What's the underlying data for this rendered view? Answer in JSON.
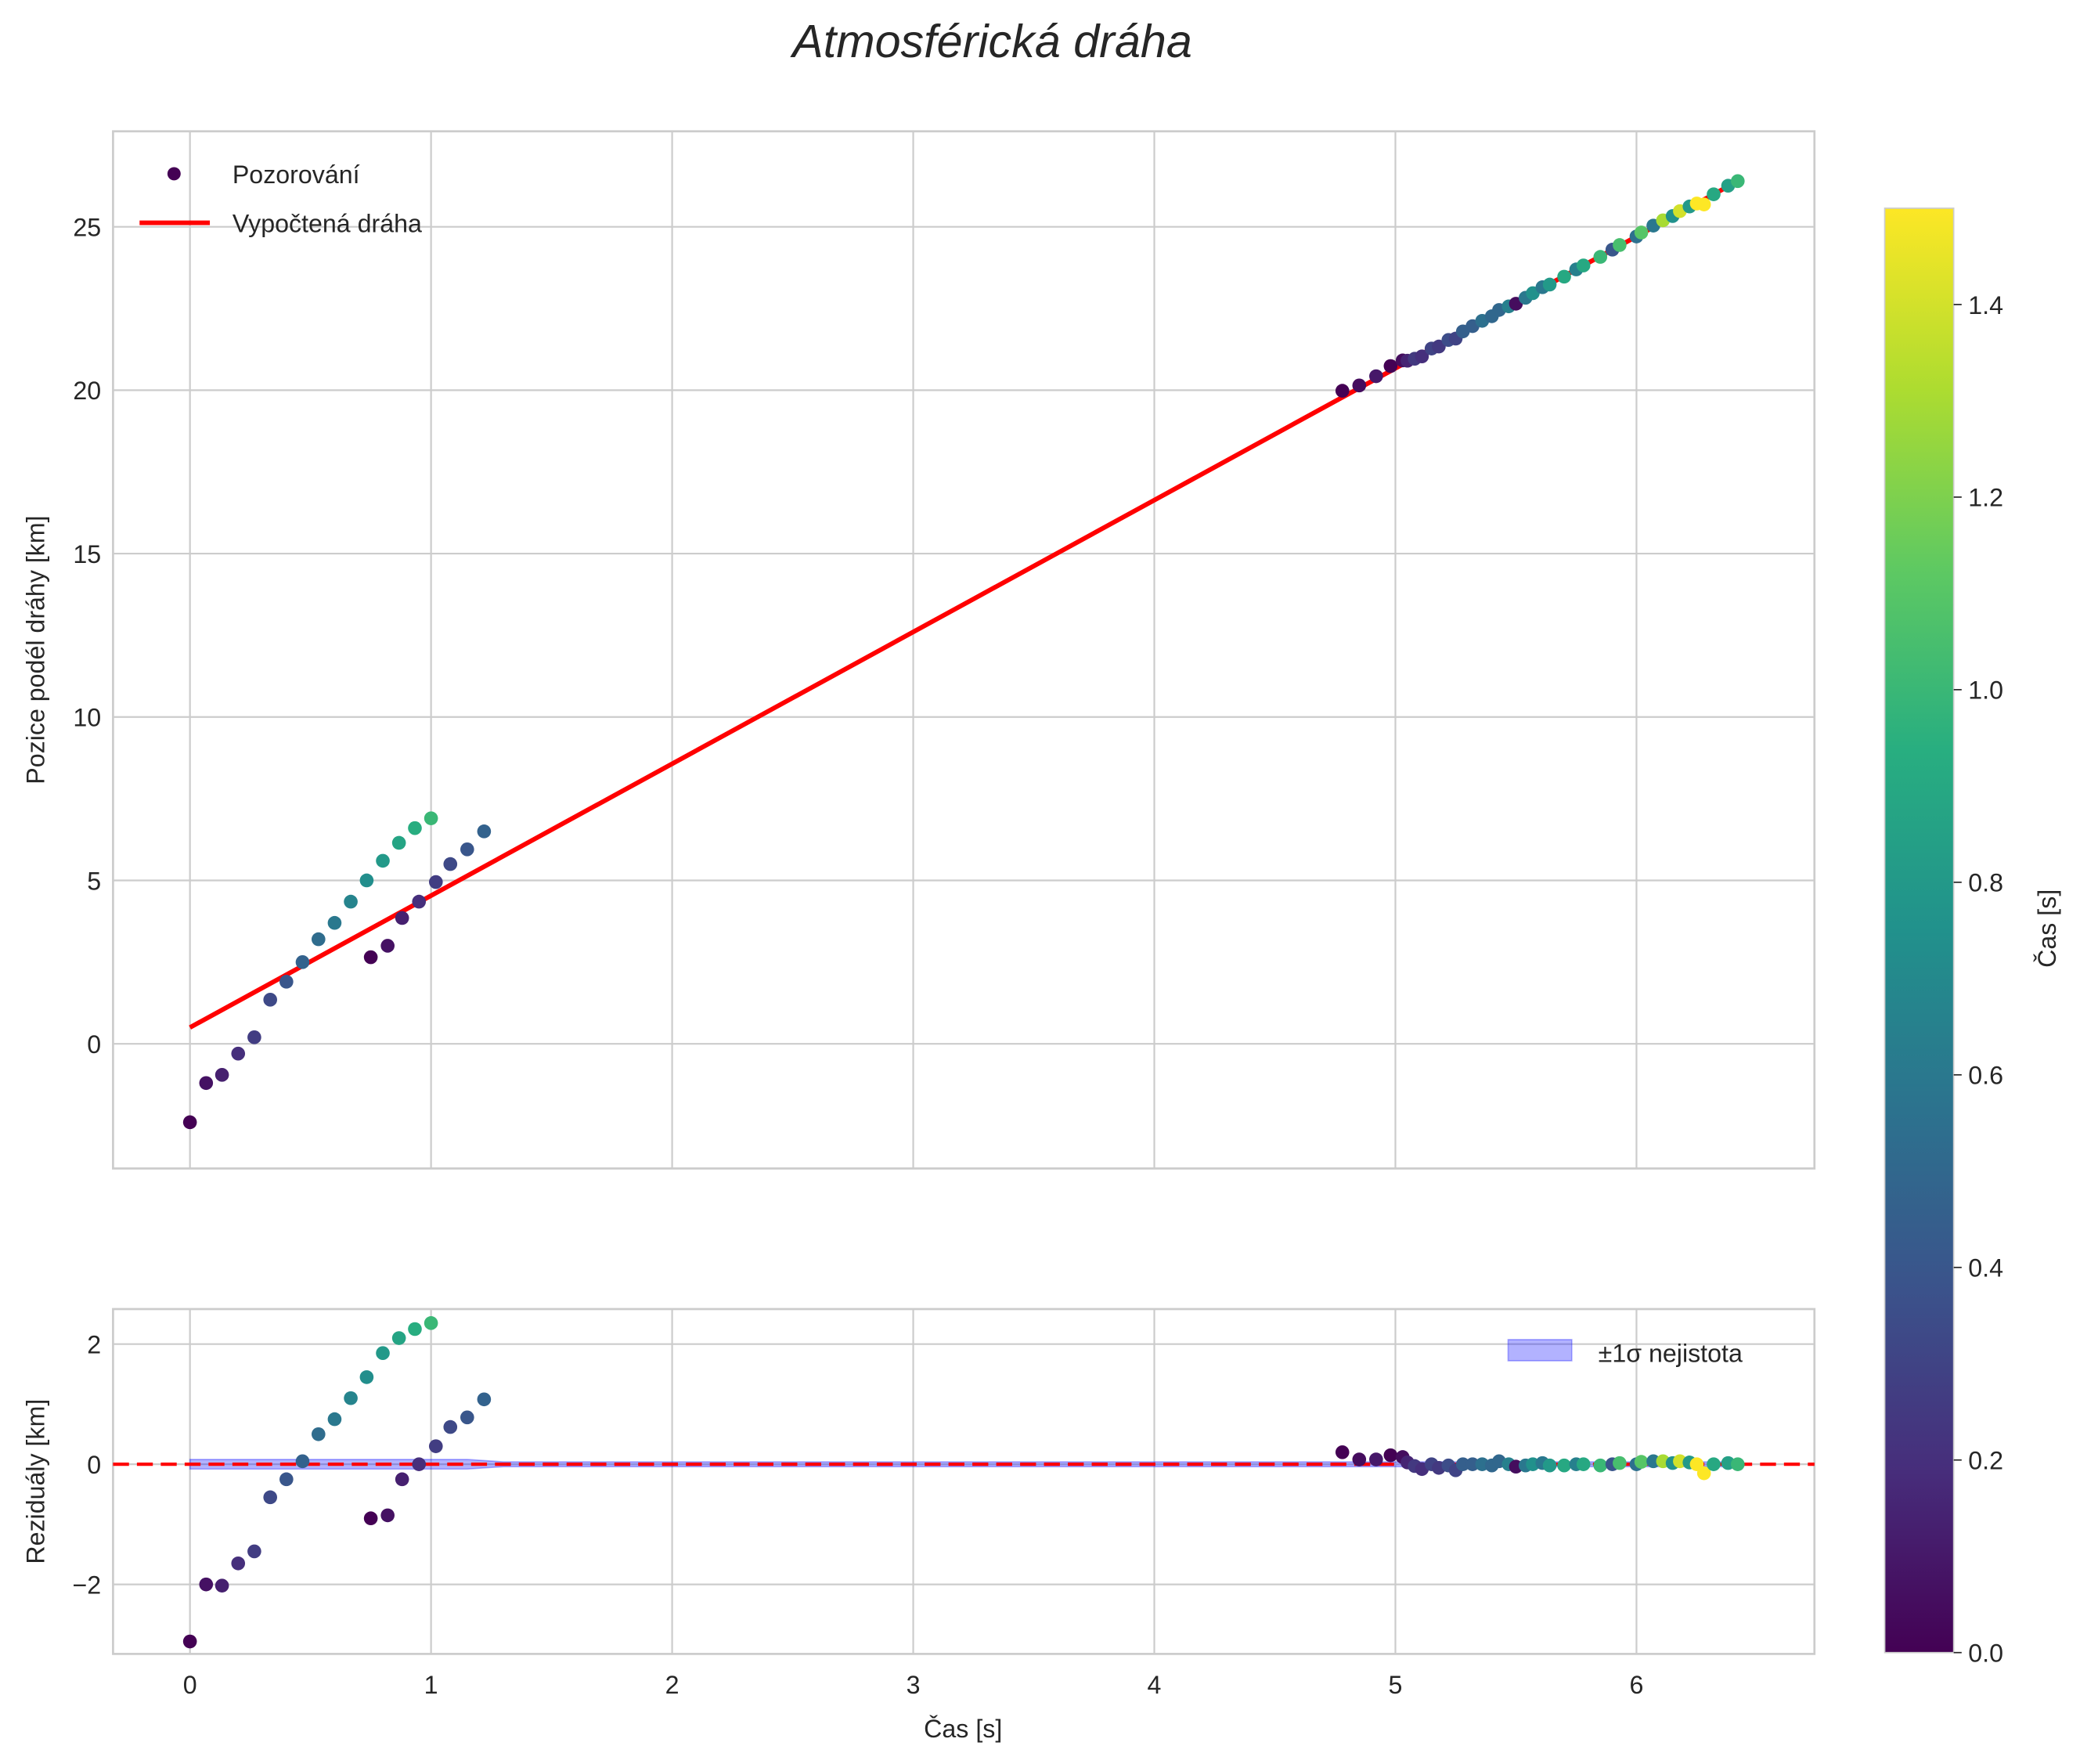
{
  "chart_data": [
    {
      "type": "scatter",
      "title": "Atmosférická dráha",
      "xlabel": "Čas [s]",
      "ylabel": "Pozice podél dráhy [km]",
      "xlim": [
        -0.32,
        6.73
      ],
      "ylim": [
        -3.8,
        27.9
      ],
      "xticks": [
        "0",
        "1",
        "2",
        "3",
        "4",
        "5",
        "6"
      ],
      "yticks": [
        "0",
        "5",
        "10",
        "15",
        "20",
        "25"
      ],
      "grid": true,
      "legend": {
        "placement": "top-left",
        "entries": [
          "Pozorování",
          "Vypočtená dráha"
        ]
      },
      "fit_line": {
        "name": "Vypočtená dráha",
        "intercept": 0.5,
        "slope": 4.034,
        "t_range": [
          0,
          6.42
        ],
        "color": "#ff0000"
      },
      "early_points": [
        {
          "t": 0.0,
          "pos": -2.4,
          "res": -2.95,
          "c": 0.0
        },
        {
          "t": 0.067,
          "pos": -1.2,
          "res": -2.0,
          "c": 0.07
        },
        {
          "t": 0.133,
          "pos": -0.95,
          "res": -2.02,
          "c": 0.13
        },
        {
          "t": 0.2,
          "pos": -0.3,
          "res": -1.65,
          "c": 0.2
        },
        {
          "t": 0.267,
          "pos": 0.2,
          "res": -1.45,
          "c": 0.27
        },
        {
          "t": 0.333,
          "pos": 1.35,
          "res": -0.55,
          "c": 0.33
        },
        {
          "t": 0.4,
          "pos": 1.9,
          "res": -0.25,
          "c": 0.4
        },
        {
          "t": 0.467,
          "pos": 2.5,
          "res": 0.05,
          "c": 0.47
        },
        {
          "t": 0.533,
          "pos": 3.2,
          "res": 0.5,
          "c": 0.53
        },
        {
          "t": 0.6,
          "pos": 3.7,
          "res": 0.75,
          "c": 0.6
        },
        {
          "t": 0.667,
          "pos": 4.35,
          "res": 1.1,
          "c": 0.67
        },
        {
          "t": 0.733,
          "pos": 5.0,
          "res": 1.45,
          "c": 0.73
        },
        {
          "t": 0.8,
          "pos": 5.6,
          "res": 1.85,
          "c": 0.8
        },
        {
          "t": 0.867,
          "pos": 6.15,
          "res": 2.1,
          "c": 0.87
        },
        {
          "t": 0.933,
          "pos": 6.6,
          "res": 2.25,
          "c": 0.93
        },
        {
          "t": 1.0,
          "pos": 6.9,
          "res": 2.35,
          "c": 1.0
        },
        {
          "t": 0.75,
          "pos": 2.65,
          "res": -0.9,
          "c": 0.0
        },
        {
          "t": 0.82,
          "pos": 3.0,
          "res": -0.85,
          "c": 0.07
        },
        {
          "t": 0.88,
          "pos": 3.85,
          "res": -0.25,
          "c": 0.13
        },
        {
          "t": 0.95,
          "pos": 4.35,
          "res": 0.0,
          "c": 0.2
        },
        {
          "t": 1.02,
          "pos": 4.95,
          "res": 0.3,
          "c": 0.27
        },
        {
          "t": 1.08,
          "pos": 5.5,
          "res": 0.62,
          "c": 0.33
        },
        {
          "t": 1.15,
          "pos": 5.95,
          "res": 0.78,
          "c": 0.4
        },
        {
          "t": 1.22,
          "pos": 6.5,
          "res": 1.08,
          "c": 0.47
        }
      ],
      "late_points_t_res_c": [
        [
          4.78,
          0.2,
          0.0
        ],
        [
          4.85,
          0.08,
          0.05
        ],
        [
          4.92,
          0.08,
          0.1
        ],
        [
          4.98,
          0.15,
          0.0
        ],
        [
          5.03,
          0.12,
          0.05
        ],
        [
          5.05,
          0.03,
          0.15
        ],
        [
          5.08,
          -0.03,
          0.25
        ],
        [
          5.11,
          -0.08,
          0.2
        ],
        [
          5.15,
          0.0,
          0.3
        ],
        [
          5.18,
          -0.06,
          0.25
        ],
        [
          5.22,
          -0.02,
          0.35
        ],
        [
          5.25,
          -0.1,
          0.3
        ],
        [
          5.28,
          0.0,
          0.45
        ],
        [
          5.32,
          0.0,
          0.45
        ],
        [
          5.36,
          0.0,
          0.55
        ],
        [
          5.4,
          -0.02,
          0.5
        ],
        [
          5.43,
          0.05,
          0.5
        ],
        [
          5.47,
          0.0,
          0.65
        ],
        [
          5.5,
          -0.04,
          0.05
        ],
        [
          5.54,
          -0.02,
          0.6
        ],
        [
          5.57,
          0.0,
          0.75
        ],
        [
          5.61,
          0.02,
          0.6
        ],
        [
          5.64,
          -0.02,
          0.8
        ],
        [
          5.7,
          -0.02,
          0.9
        ],
        [
          5.75,
          0.0,
          0.65
        ],
        [
          5.78,
          0.0,
          0.9
        ],
        [
          5.85,
          -0.02,
          1.0
        ],
        [
          5.9,
          0.0,
          0.4
        ],
        [
          5.93,
          0.02,
          1.05
        ],
        [
          6.0,
          0.0,
          0.55
        ],
        [
          6.02,
          0.04,
          1.1
        ],
        [
          6.07,
          0.05,
          0.6
        ],
        [
          6.11,
          0.05,
          1.3
        ],
        [
          6.15,
          0.02,
          0.75
        ],
        [
          6.18,
          0.05,
          1.4
        ],
        [
          6.22,
          0.03,
          0.8
        ],
        [
          6.25,
          0.0,
          1.5
        ],
        [
          6.28,
          -0.15,
          1.5
        ],
        [
          6.32,
          0.0,
          0.9
        ],
        [
          6.38,
          0.02,
          0.85
        ],
        [
          6.42,
          0.0,
          1.0
        ]
      ]
    },
    {
      "type": "scatter",
      "xlabel": "Čas [s]",
      "ylabel": "Reziduály [km]",
      "ylim": [
        -3.2,
        2.6
      ],
      "yticks": [
        "−2",
        "0",
        "2"
      ],
      "zero_line_color": "#ff0000",
      "band": {
        "label": "±1σ nejistota",
        "sigma_early": 0.08,
        "sigma_late": 0.04,
        "color": "#0000ff"
      },
      "legend": {
        "placement": "top-right"
      }
    }
  ],
  "colorbar": {
    "label": "Čas [s]",
    "range": [
      0,
      1.5
    ],
    "ticks": [
      "0.0",
      "0.2",
      "0.4",
      "0.6",
      "0.8",
      "1.0",
      "1.2",
      "1.4"
    ],
    "colormap": "viridis"
  }
}
